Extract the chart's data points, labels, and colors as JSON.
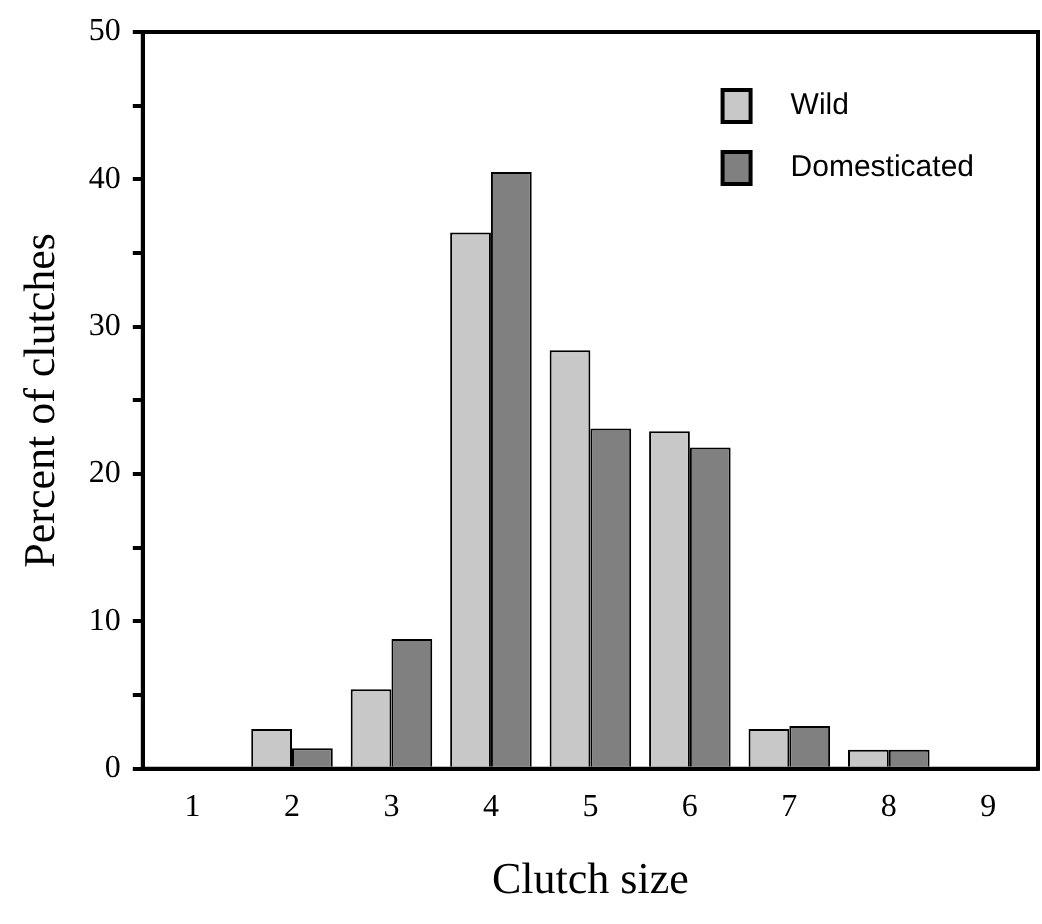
{
  "chart_data": {
    "type": "bar",
    "xlabel": "Clutch size",
    "ylabel": "Percent of clutches",
    "categories": [
      "1",
      "2",
      "3",
      "4",
      "5",
      "6",
      "7",
      "8",
      "9"
    ],
    "series": [
      {
        "name": "Wild",
        "color": "#c8c8c8",
        "values": [
          0,
          2.7,
          5.4,
          36.4,
          28.4,
          22.9,
          2.7,
          1.3,
          0
        ]
      },
      {
        "name": "Domesticated",
        "color": "#808080",
        "values": [
          0,
          1.4,
          8.8,
          40.5,
          23.1,
          21.8,
          2.9,
          1.3,
          0
        ]
      }
    ],
    "ylim": [
      0,
      50
    ],
    "yticks": [
      0,
      {
        "value": 5,
        "label": null
      },
      10,
      {
        "value": 15,
        "label": null
      },
      20,
      {
        "value": 25,
        "label": null
      },
      30,
      {
        "value": 35,
        "label": null
      },
      40,
      {
        "value": 45,
        "label": null
      },
      50
    ],
    "grid": false,
    "legend": "top right"
  }
}
